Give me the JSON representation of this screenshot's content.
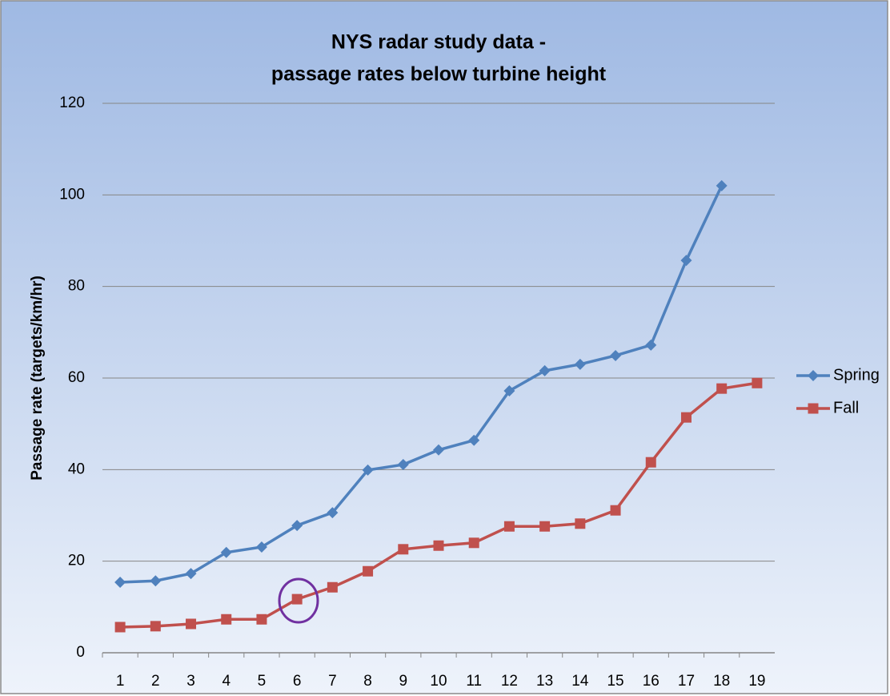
{
  "chart_data": {
    "type": "line",
    "title": [
      "NYS radar study data -",
      "passage rates below turbine height"
    ],
    "y_label": "Passage rate (targets/km/hr)",
    "categories": [
      "1",
      "2",
      "3",
      "4",
      "5",
      "6",
      "7",
      "8",
      "9",
      "10",
      "11",
      "12",
      "13",
      "14",
      "15",
      "16",
      "17",
      "18",
      "19"
    ],
    "series": [
      {
        "name": "Spring",
        "color": "#4f81bd",
        "marker": "diamond",
        "values": [
          15.4,
          15.7,
          17.3,
          21.9,
          23.1,
          27.8,
          30.6,
          39.9,
          41.1,
          44.3,
          46.4,
          57.2,
          61.6,
          63.0,
          64.9,
          67.2,
          85.7,
          102.0,
          null
        ]
      },
      {
        "name": "Fall",
        "color": "#c0504d",
        "marker": "square",
        "values": [
          5.6,
          5.8,
          6.3,
          7.3,
          7.3,
          11.7,
          14.3,
          17.8,
          22.6,
          23.4,
          24.0,
          27.6,
          27.6,
          28.2,
          31.1,
          41.6,
          51.4,
          57.7,
          58.9
        ]
      }
    ],
    "ylim": [
      0,
      120
    ],
    "yticks": [
      0,
      20,
      40,
      60,
      80,
      100,
      120
    ],
    "grid": true,
    "legend": "right"
  }
}
